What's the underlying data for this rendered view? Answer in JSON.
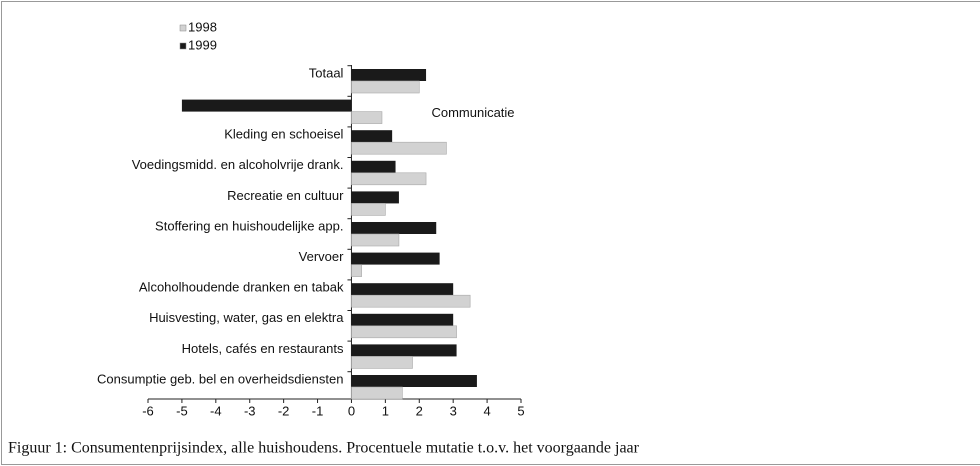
{
  "chart_data": {
    "type": "bar",
    "orientation": "horizontal",
    "caption": "Figuur 1: Consumentenprijsindex, alle huishoudens. Procentuele mutatie t.o.v. het voorgaande jaar",
    "categories": [
      "Totaal",
      "Communicatie",
      "Kleding en schoeisel",
      "Voedingsmidd. en alcoholvrije drank.",
      "Recreatie en cultuur",
      "Stoffering en huishoudelijke app.",
      "Vervoer",
      "Alcoholhoudende dranken  en tabak",
      "Huisvesting, water, gas en elektra",
      "Hotels, cafés en restaurants",
      "Consumptie geb. bel  en overheidsdiensten"
    ],
    "series": [
      {
        "name": "1999",
        "color": "#1a1a1a",
        "values": [
          2.2,
          -5.0,
          1.2,
          1.3,
          1.4,
          2.5,
          2.6,
          3.0,
          3.0,
          3.1,
          3.7
        ]
      },
      {
        "name": "1998",
        "color": "#d2d2d2",
        "values": [
          2.0,
          0.9,
          2.8,
          2.2,
          1.0,
          1.4,
          0.3,
          3.5,
          3.1,
          1.8,
          1.5
        ]
      }
    ],
    "xlim": [
      -6,
      5
    ],
    "xticks": [
      -6,
      -5,
      -4,
      -3,
      -2,
      -1,
      0,
      1,
      2,
      3,
      4,
      5
    ]
  }
}
